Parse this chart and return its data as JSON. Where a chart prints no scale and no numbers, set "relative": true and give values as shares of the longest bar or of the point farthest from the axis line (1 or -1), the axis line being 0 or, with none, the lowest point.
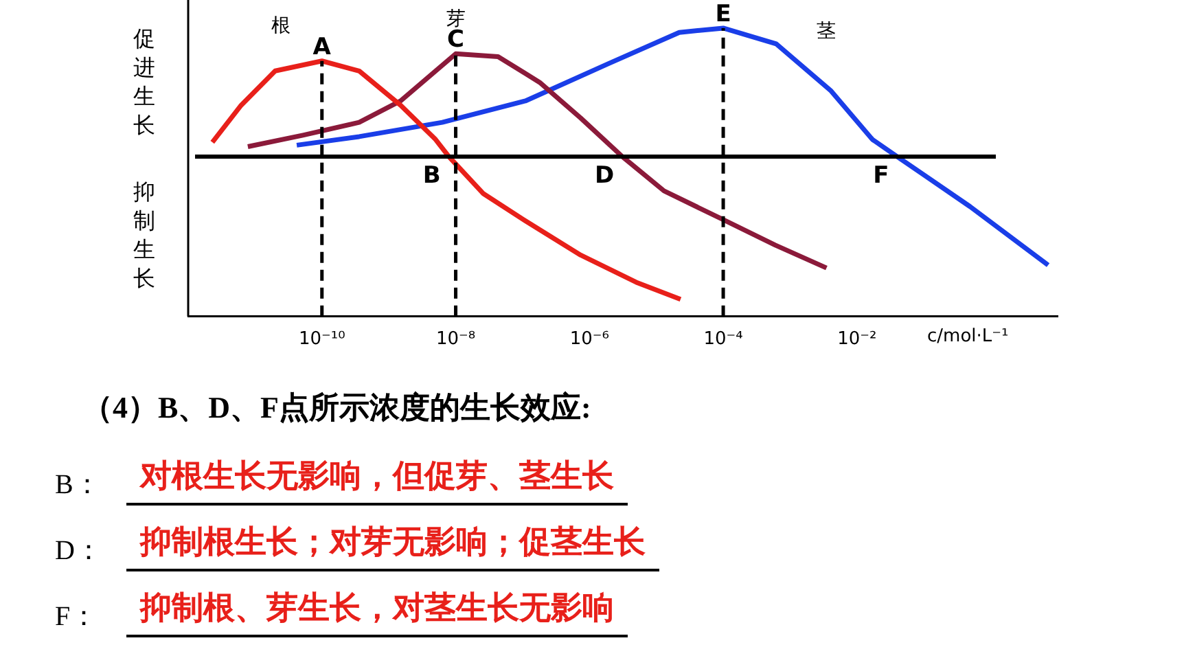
{
  "chart_data": {
    "type": "line",
    "relative": true,
    "log": "x",
    "grid": false,
    "legend": false,
    "marker": "none",
    "line_style": "solid",
    "tick_labels": "x",
    "xlabel": "c/mol·L⁻¹",
    "xlim": [
      1e-12,
      10
    ],
    "xticks": [
      {
        "value": 1e-10,
        "label": "10⁻¹⁰"
      },
      {
        "value": 1e-08,
        "label": "10⁻⁸"
      },
      {
        "value": 1e-06,
        "label": "10⁻⁶"
      },
      {
        "value": 0.0001,
        "label": "10⁻⁴"
      },
      {
        "value": 0.01,
        "label": "10⁻²"
      }
    ],
    "series": [
      {
        "name": "根",
        "color": "#e8201a",
        "x": [
          2.3e-12,
          6.2e-12,
          2e-11,
          1e-10,
          3.6e-10,
          1.5e-09,
          5e-09,
          7.9e-09,
          2.6e-08,
          1.1e-07,
          7.4e-07,
          5e-06,
          2.3e-05
        ],
        "values": [
          0.1,
          0.36,
          0.6,
          0.67,
          0.6,
          0.36,
          0.12,
          0,
          -0.26,
          -0.45,
          -0.69,
          -0.88,
          -1.0
        ]
      },
      {
        "name": "芽",
        "color": "#8b1a3a",
        "x": [
          7.8e-12,
          5.2e-11,
          3.6e-10,
          1.5e-09,
          5e-09,
          1e-08,
          4.3e-08,
          1.8e-07,
          7.4e-07,
          3.1e-06,
          1.3e-05,
          8.9e-05,
          0.0006,
          0.0035
        ],
        "values": [
          0.07,
          0.15,
          0.24,
          0.39,
          0.6,
          0.72,
          0.7,
          0.52,
          0.27,
          0,
          -0.24,
          -0.43,
          -0.62,
          -0.78
        ]
      },
      {
        "name": "茎",
        "color": "#1a3ee8",
        "x": [
          4.2e-11,
          3.6e-10,
          6.3e-09,
          1.1e-07,
          1.9e-06,
          2.2e-05,
          0.0001,
          0.00062,
          0.0041,
          0.017,
          0.04,
          0.49,
          7.2
        ],
        "values": [
          0.08,
          0.14,
          0.24,
          0.39,
          0.65,
          0.87,
          0.9,
          0.79,
          0.46,
          0.12,
          0,
          -0.35,
          -0.76
        ]
      }
    ],
    "ref_lines": [
      {
        "axis": "x",
        "value": 1e-10,
        "color": "#000000",
        "line_style": "dashed"
      },
      {
        "axis": "x",
        "value": 1e-08,
        "color": "#000000",
        "line_style": "dashed"
      },
      {
        "axis": "x",
        "value": 0.0001,
        "color": "#000000",
        "line_style": "dashed"
      }
    ],
    "annotations": [
      "促进生长",
      "抑制生长",
      {
        "text": "A",
        "x": 1e-10,
        "y": 0.67
      },
      {
        "text": "B",
        "x": 7.9e-09,
        "y": 0
      },
      {
        "text": "C",
        "x": 1e-08,
        "y": 0.72
      },
      {
        "text": "D",
        "x": 3.1e-06,
        "y": 0
      },
      {
        "text": "E",
        "x": 0.0001,
        "y": 0.9
      },
      {
        "text": "F",
        "x": 0.04,
        "y": 0
      },
      "（4）B、D、F点所示浓度的生长效应:",
      "B：",
      "对根生长无影响，但促芽、茎生长",
      "D：",
      "抑制根生长；对芽无影响；促茎生长",
      "F：",
      "抑制根、芽生长，对茎生长无影响"
    ]
  }
}
